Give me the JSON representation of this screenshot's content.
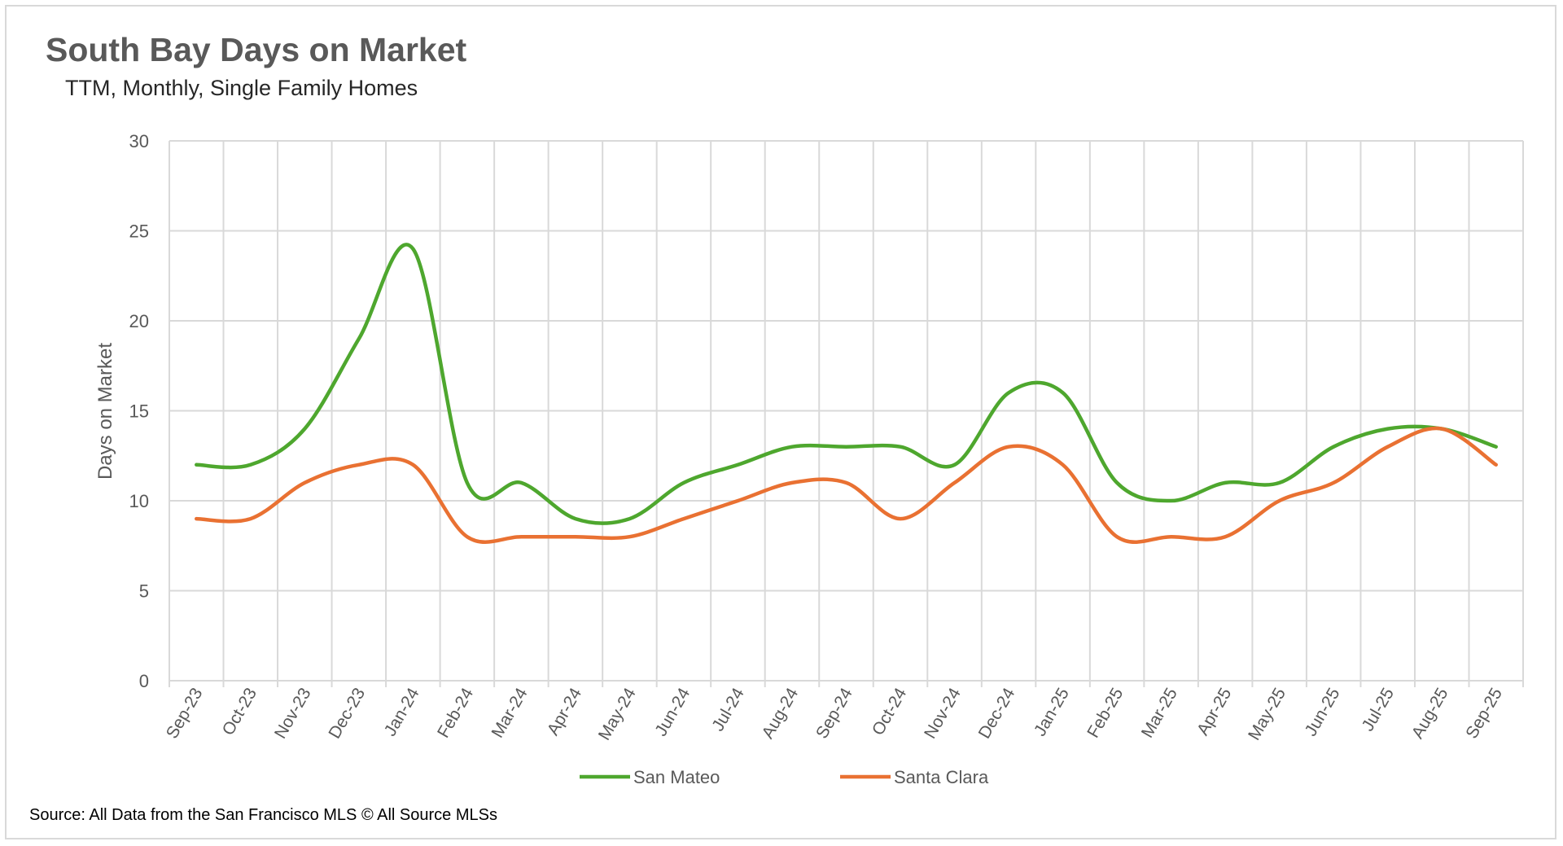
{
  "chart_data": {
    "type": "line",
    "title": "South Bay Days on Market",
    "subtitle": "TTM, Monthly, Single Family Homes",
    "xlabel": "",
    "ylabel": "Days on Market",
    "ylim": [
      0,
      30
    ],
    "y_ticks": [
      0,
      5,
      10,
      15,
      20,
      25,
      30
    ],
    "grid": true,
    "legend_position": "bottom",
    "categories": [
      "Sep-23",
      "Oct-23",
      "Nov-23",
      "Dec-23",
      "Jan-24",
      "Feb-24",
      "Mar-24",
      "Apr-24",
      "May-24",
      "Jun-24",
      "Jul-24",
      "Aug-24",
      "Sep-24",
      "Oct-24",
      "Nov-24",
      "Dec-24",
      "Jan-25",
      "Feb-25",
      "Mar-25",
      "Apr-25",
      "May-25",
      "Jun-25",
      "Jul-25",
      "Aug-25",
      "Sep-25"
    ],
    "series": [
      {
        "name": "San Mateo",
        "color": "#4ea72e",
        "values": [
          12,
          12,
          14,
          19,
          24,
          11,
          11,
          9,
          9,
          11,
          12,
          13,
          13,
          13,
          12,
          16,
          16,
          11,
          10,
          11,
          11,
          13,
          14,
          14,
          13
        ]
      },
      {
        "name": "Santa Clara",
        "color": "#e97132",
        "values": [
          9,
          9,
          11,
          12,
          12,
          8,
          8,
          8,
          8,
          9,
          10,
          11,
          11,
          9,
          11,
          13,
          12,
          8,
          8,
          8,
          10,
          11,
          13,
          14,
          12
        ]
      }
    ]
  },
  "source": "Source: All Data from the San Francisco MLS © All Source MLSs"
}
